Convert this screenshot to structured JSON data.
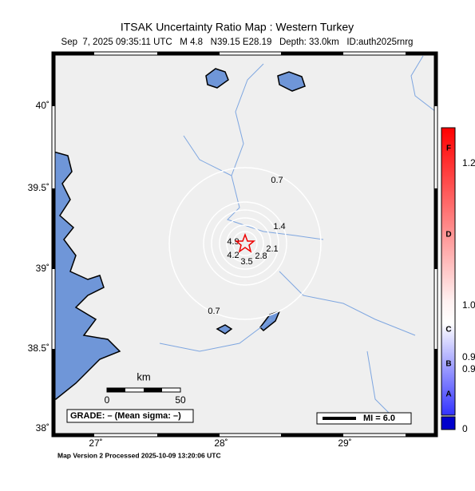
{
  "header": {
    "title": "ITSAK Uncertainty Ratio Map : Western Turkey",
    "subtitle": "Sep  7, 2025 09:35:11 UTC   M 4.8   N39.15 E28.19   Depth: 33.0km   ID:auth2025rnrg"
  },
  "axes": {
    "lat_labels": [
      "40˚",
      "39.5˚",
      "39˚",
      "38.5˚",
      "38˚"
    ],
    "lon_labels": [
      "27˚",
      "28˚",
      "29˚"
    ]
  },
  "contours": {
    "labels": [
      "0.7",
      "1.4",
      "2.1",
      "2.8",
      "3.5",
      "4.2",
      "4.9",
      "0.7"
    ]
  },
  "colorbar": {
    "grades": [
      "F",
      "D",
      "C",
      "B",
      "A"
    ],
    "tick_labels": [
      "1.2",
      "1.0",
      "0.9",
      "0.9",
      "0"
    ]
  },
  "scale_bar": {
    "unit": "km",
    "start": "0",
    "end": "50"
  },
  "legend": {
    "grade": "GRADE: – (Mean sigma: –)",
    "mi": "MI = 6.0"
  },
  "footer": "Map Version 2 Processed 2025-10-09 13:20:06 UTC"
}
